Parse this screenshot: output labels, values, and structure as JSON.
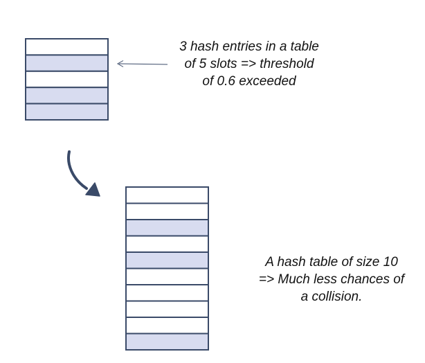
{
  "colors": {
    "stroke": "#3a4a68",
    "filled_slot": "#d8dcf0",
    "empty_slot": "#ffffff",
    "text": "#111111"
  },
  "small_table": {
    "slots": 5,
    "filled": [
      false,
      true,
      false,
      true,
      true
    ]
  },
  "large_table": {
    "slots": 10,
    "filled": [
      false,
      false,
      true,
      false,
      true,
      false,
      false,
      false,
      false,
      true
    ]
  },
  "captions": {
    "top": [
      "3 hash entries in a table",
      "of 5 slots => threshold",
      "of 0.6 exceeded"
    ],
    "bottom": [
      "A hash table of size 10",
      "=> Much less chances of",
      "a collision."
    ]
  },
  "icons": {
    "pointer": "left-arrow-icon",
    "transition": "curved-down-arrow-icon"
  }
}
